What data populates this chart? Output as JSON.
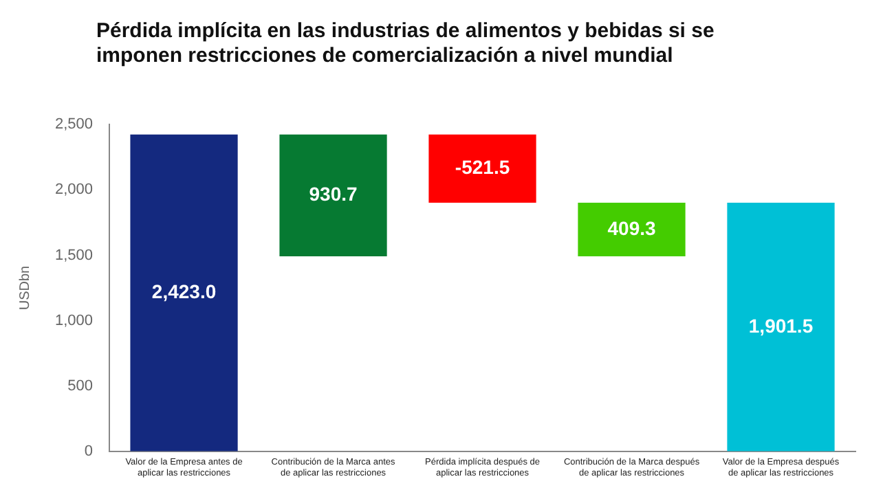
{
  "chart_data": {
    "type": "bar",
    "title": "Pérdida implícita en las industrias de alimentos y bebidas si se imponen restricciones de comercialización a nivel mundial",
    "ylabel": "USDbn",
    "categories": [
      "Valor de la Empresa antes de aplicar las restricciones",
      "Contribución de la Marca antes de aplicar las restricciones",
      "Pérdida implícita después de aplicar las restricciones",
      "Contribución de la Marca después de aplicar las restricciones",
      "Valor de la Empresa después de aplicar las restricciones"
    ],
    "values": [
      2423.0,
      930.7,
      -521.5,
      409.3,
      1901.5
    ],
    "base": [
      0,
      1492.3,
      2423.0,
      1492.2,
      0
    ],
    "colors": [
      "#14297f",
      "#067a32",
      "#ff0000",
      "#44cc00",
      "#00c0d6"
    ],
    "value_labels": [
      "2,423.0",
      "930.7",
      "-521.5",
      "409.3",
      "1,901.5"
    ],
    "ylim": [
      0,
      2500
    ],
    "yticks": [
      0,
      500,
      {
        "value": 1000,
        "label": "1,000"
      },
      {
        "value": 1500,
        "label": "1,500"
      },
      {
        "value": 2000,
        "label": "2,000"
      },
      {
        "value": 2500,
        "label": "2,500"
      }
    ],
    "grid": false
  }
}
